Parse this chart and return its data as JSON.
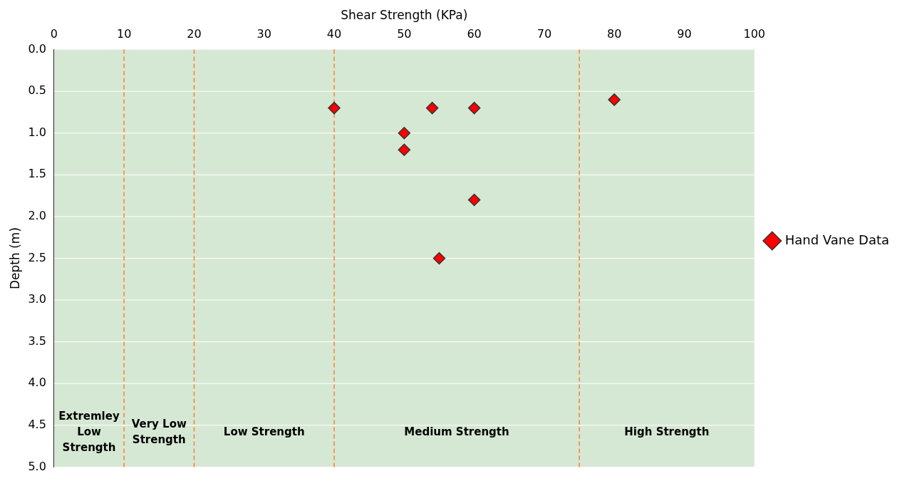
{
  "chart_data": {
    "type": "scatter",
    "xlabel": "Shear Strength (KPa)",
    "ylabel": "Depth (m)",
    "series": [
      {
        "name": "Hand Vane Data",
        "color": "#ff0000",
        "x": [
          40,
          50,
          50,
          54,
          60,
          60,
          55,
          80
        ],
        "values": [
          0.7,
          1.0,
          1.2,
          0.7,
          0.7,
          1.8,
          2.5,
          0.6
        ]
      }
    ],
    "xlim": [
      0,
      100
    ],
    "xticks": [
      0,
      10,
      20,
      30,
      40,
      50,
      60,
      70,
      80,
      90,
      100
    ],
    "ylim": [
      5,
      0
    ],
    "yticks": [
      {
        "value": 0,
        "label": "0.0"
      },
      {
        "value": 0.5,
        "label": "0.5"
      },
      {
        "value": 1,
        "label": "1.0"
      },
      {
        "value": 1.5,
        "label": "1.5"
      },
      {
        "value": 2,
        "label": "2.0"
      },
      {
        "value": 2.5,
        "label": "2.5"
      },
      {
        "value": 3,
        "label": "3.0"
      },
      {
        "value": 3.5,
        "label": "3.5"
      },
      {
        "value": 4,
        "label": "4.0"
      },
      {
        "value": 4.5,
        "label": "4.5"
      },
      {
        "value": 5,
        "label": "5.0"
      }
    ],
    "grid": "y",
    "marker": "diamond",
    "legend": "right",
    "bands": [
      {
        "axis": "x",
        "from": 0,
        "to": 10,
        "label": "Extremley Low Strength",
        "color": "#d5e8d4"
      },
      {
        "axis": "x",
        "from": 10,
        "to": 20,
        "label": "Very Low Strength",
        "color": "#d5e8d4"
      },
      {
        "axis": "x",
        "from": 20,
        "to": 40,
        "label": "Low Strength",
        "color": "#d5e8d4"
      },
      {
        "axis": "x",
        "from": 40,
        "to": 75,
        "label": "Medium Strength",
        "color": "#d5e8d4"
      },
      {
        "axis": "x",
        "from": 75,
        "to": 100,
        "label": "High Strength",
        "color": "#d5e8d4"
      }
    ],
    "ref_lines": [
      {
        "axis": "x",
        "value": 10,
        "color": "#ff7f27",
        "line_style": "dashed"
      },
      {
        "axis": "x",
        "value": 20,
        "color": "#ff7f27",
        "line_style": "dashed"
      },
      {
        "axis": "x",
        "value": 40,
        "color": "#ff7f27",
        "line_style": "dashed"
      },
      {
        "axis": "x",
        "value": 75,
        "color": "#ff7f27",
        "line_style": "dashed"
      }
    ]
  }
}
